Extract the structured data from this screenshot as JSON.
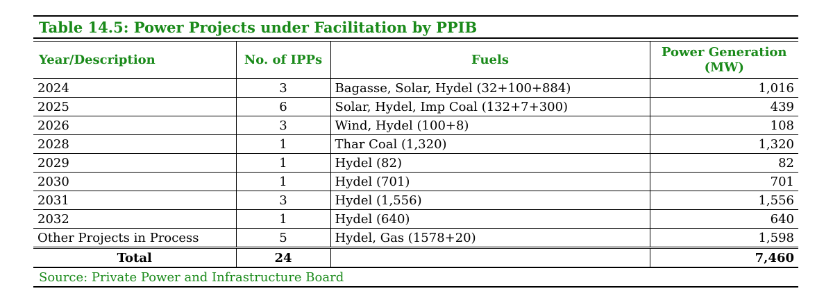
{
  "title": "Table 14.5: Power Projects under Facilitation by PPIB",
  "columns": {
    "year": "Year/Description",
    "ipps": "No. of IPPs",
    "fuels": "Fuels",
    "power": "Power Generation (MW)"
  },
  "rows": [
    {
      "year": "2024",
      "ipps": "3",
      "fuels": "Bagasse, Solar, Hydel (32+100+884)",
      "mw": "1,016"
    },
    {
      "year": "2025",
      "ipps": "6",
      "fuels": "Solar, Hydel, Imp Coal (132+7+300)",
      "mw": "439"
    },
    {
      "year": "2026",
      "ipps": "3",
      "fuels": "Wind, Hydel (100+8)",
      "mw": "108"
    },
    {
      "year": "2028",
      "ipps": "1",
      "fuels": "Thar Coal (1,320)",
      "mw": "1,320"
    },
    {
      "year": "2029",
      "ipps": "1",
      "fuels": "Hydel (82)",
      "mw": "82"
    },
    {
      "year": "2030",
      "ipps": "1",
      "fuels": "Hydel (701)",
      "mw": "701"
    },
    {
      "year": "2031",
      "ipps": "3",
      "fuels": "Hydel (1,556)",
      "mw": "1,556"
    },
    {
      "year": "2032",
      "ipps": "1",
      "fuels": "Hydel (640)",
      "mw": "640"
    },
    {
      "year": "Other Projects in Process",
      "ipps": "5",
      "fuels": "Hydel, Gas (1578+20)",
      "mw": "1,598"
    }
  ],
  "total": {
    "label": "Total",
    "ipps": "24",
    "fuels": "",
    "mw": "7,460"
  },
  "source": "Source: Private Power and Infrastructure Board",
  "colors": {
    "accent": "#1a8a1a"
  }
}
